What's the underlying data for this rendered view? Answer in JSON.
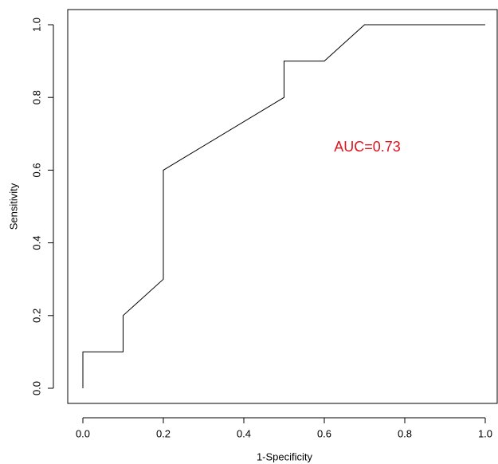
{
  "chart_data": {
    "type": "line",
    "x_label": "1-Specificity",
    "y_label": "Sensitivity",
    "annotation": "AUC=0.73",
    "annotation_color": "#e0141e",
    "series": [
      {
        "name": null,
        "color": "#000000",
        "x": [
          0,
          0,
          0.1,
          0.1,
          0.2,
          0.2,
          0.5,
          0.5,
          0.6,
          0.7,
          1.0
        ],
        "values": [
          0,
          0.1,
          0.1,
          0.2,
          0.3,
          0.6,
          0.8,
          0.9,
          0.9,
          1.0,
          1.0
        ]
      }
    ],
    "xlim": [
      0,
      1
    ],
    "ylim": [
      0,
      1
    ],
    "xticks": [
      {
        "value": 0,
        "label": "0.0"
      },
      {
        "value": 0.2,
        "label": "0.2"
      },
      {
        "value": 0.4,
        "label": "0.4"
      },
      {
        "value": 0.6,
        "label": "0.6"
      },
      {
        "value": 0.8,
        "label": "0.8"
      },
      {
        "value": 1,
        "label": "1.0"
      }
    ],
    "yticks": [
      {
        "value": 0,
        "label": "0.0"
      },
      {
        "value": 0.2,
        "label": "0.2"
      },
      {
        "value": 0.4,
        "label": "0.4"
      },
      {
        "value": 0.6,
        "label": "0.6"
      },
      {
        "value": 0.8,
        "label": "0.8"
      },
      {
        "value": 1,
        "label": "1.0"
      }
    ],
    "grid": false
  }
}
